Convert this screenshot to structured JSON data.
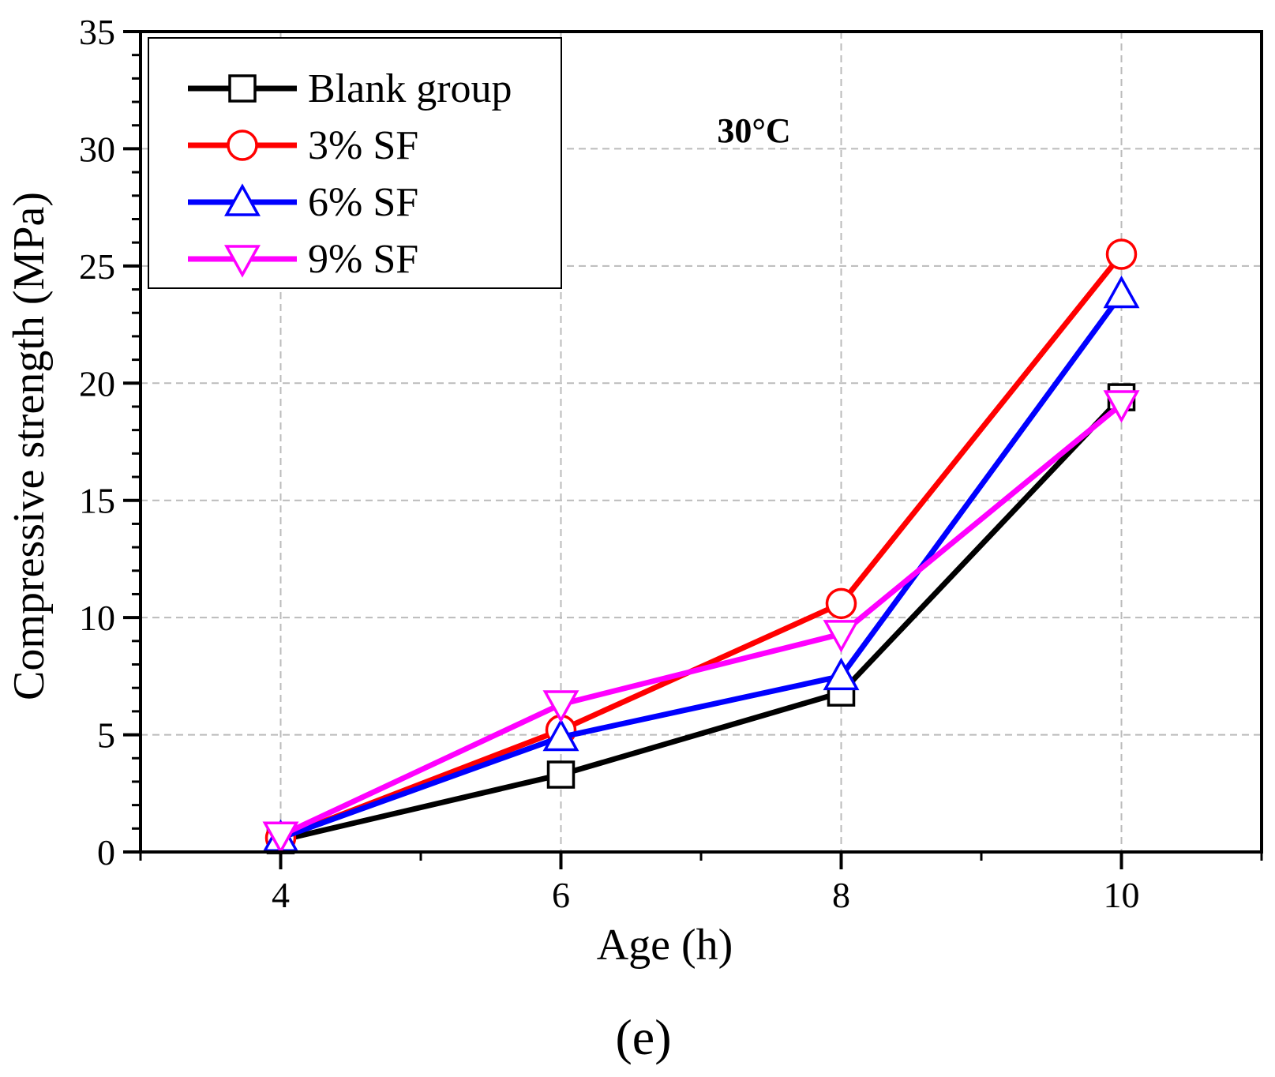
{
  "chart_data": {
    "type": "line",
    "title": "",
    "annotation": "30°C",
    "panel_label": "(e)",
    "xlabel": "Age (h)",
    "ylabel": "Compressive strength (MPa)",
    "x": [
      4,
      6,
      8,
      10
    ],
    "xlim": [
      3,
      11
    ],
    "ylim": [
      0,
      35
    ],
    "xticks": [
      4,
      6,
      8,
      10
    ],
    "xtick_labels": [
      "4",
      "6",
      "8",
      "10"
    ],
    "yticks": [
      0,
      5,
      10,
      15,
      20,
      25,
      30,
      35
    ],
    "ytick_labels": [
      "0",
      "5",
      "10",
      "15",
      "20",
      "25",
      "30",
      "35"
    ],
    "grid": true,
    "legend_position": "top-left",
    "series": [
      {
        "name": "Blank group",
        "color": "#000000",
        "marker": "square",
        "values": [
          0.5,
          3.3,
          6.8,
          19.4
        ]
      },
      {
        "name": "3% SF",
        "color": "#ff0000",
        "marker": "circle",
        "values": [
          0.6,
          5.2,
          10.6,
          25.5
        ]
      },
      {
        "name": "6% SF",
        "color": "#0000ff",
        "marker": "triangle-up",
        "values": [
          0.6,
          4.9,
          7.5,
          23.8
        ]
      },
      {
        "name": "9% SF",
        "color": "#ff00ff",
        "marker": "triangle-down",
        "values": [
          0.7,
          6.3,
          9.3,
          19.1
        ]
      }
    ]
  }
}
